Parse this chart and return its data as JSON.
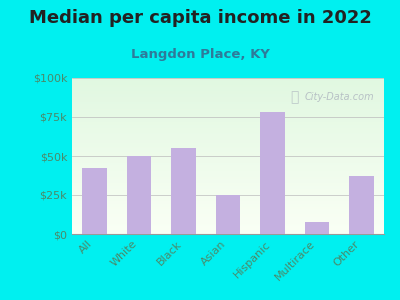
{
  "title": "Median per capita income in 2022",
  "subtitle": "Langdon Place, KY",
  "categories": [
    "All",
    "White",
    "Black",
    "Asian",
    "Hispanic",
    "Multirace",
    "Other"
  ],
  "values": [
    42000,
    50000,
    55000,
    25000,
    78000,
    8000,
    37000
  ],
  "bar_color": "#c4b0e0",
  "background_outer": "#00f0f0",
  "title_color": "#222222",
  "subtitle_color": "#2e7a9a",
  "tick_label_color": "#4a8a6a",
  "ylim": [
    0,
    100000
  ],
  "yticks": [
    0,
    25000,
    50000,
    75000,
    100000
  ],
  "ytick_labels": [
    "$0",
    "$25k",
    "$50k",
    "$75k",
    "$100k"
  ],
  "watermark": "City-Data.com",
  "title_fontsize": 13,
  "subtitle_fontsize": 9.5,
  "tick_fontsize": 8
}
